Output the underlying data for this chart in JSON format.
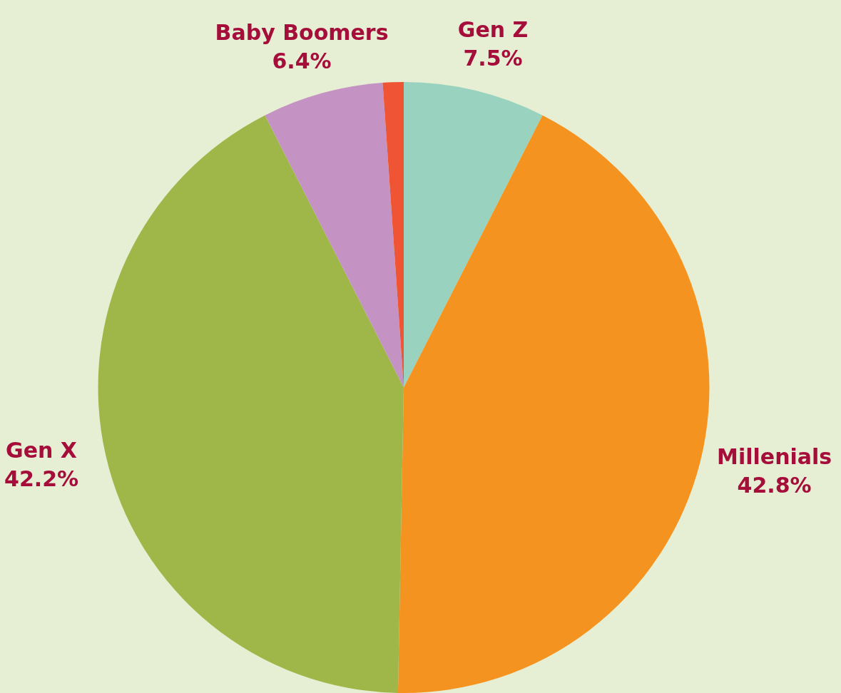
{
  "chart_data": {
    "type": "pie",
    "categories": [
      "Gen Z",
      "Millenials",
      "Gen X",
      "Baby Boomers",
      null
    ],
    "values": [
      7.5,
      42.8,
      42.2,
      6.4,
      1.1
    ],
    "colors": [
      "#99d3bf",
      "#f59320",
      "#9eb748",
      "#c493c3",
      "#ef5535"
    ],
    "value_labels": [
      "7.5%",
      "42.8%",
      "42.2%",
      "6.4%",
      null
    ],
    "legend": false
  }
}
